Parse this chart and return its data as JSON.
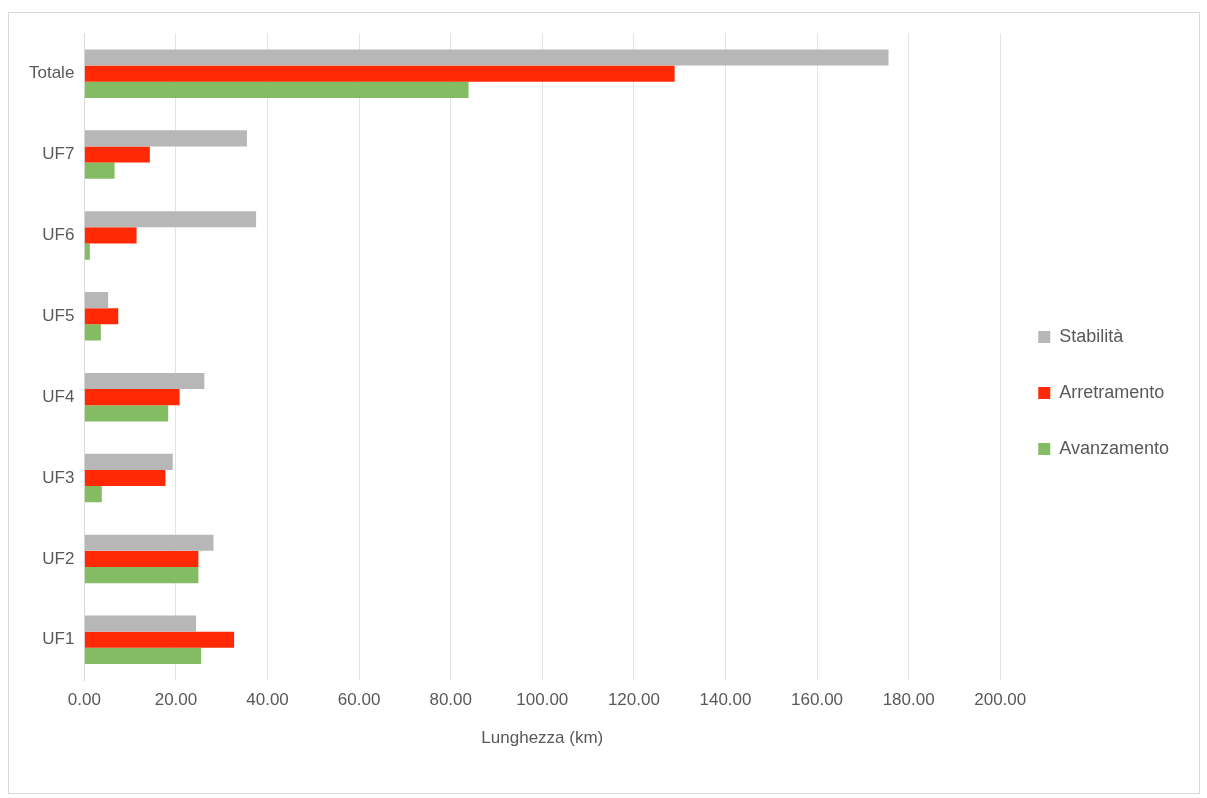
{
  "chart_data": {
    "type": "bar",
    "orientation": "horizontal",
    "xlabel": "Lunghezza (km)",
    "categories": [
      "Totale",
      "UF7",
      "UF6",
      "UF5",
      "UF4",
      "UF3",
      "UF2",
      "UF1"
    ],
    "series": [
      {
        "name": "Stabilità",
        "color": "#b7b7b7",
        "values": [
          175.6,
          35.5,
          37.5,
          5.2,
          26.2,
          19.3,
          28.2,
          24.4
        ]
      },
      {
        "name": "Arretramento",
        "color": "#ff2a05",
        "values": [
          128.9,
          14.3,
          11.4,
          7.4,
          20.8,
          17.7,
          24.9,
          32.7
        ]
      },
      {
        "name": "Avanzamento",
        "color": "#84bc64",
        "values": [
          83.9,
          6.6,
          1.2,
          3.6,
          18.3,
          3.8,
          24.9,
          25.5
        ]
      }
    ],
    "xlim": [
      0,
      200
    ],
    "xticks": [
      {
        "value": 0,
        "label": "0.00"
      },
      {
        "value": 20,
        "label": "20.00"
      },
      {
        "value": 40,
        "label": "40.00"
      },
      {
        "value": 60,
        "label": "60.00"
      },
      {
        "value": 80,
        "label": "80.00"
      },
      {
        "value": 100,
        "label": "100.00"
      },
      {
        "value": 120,
        "label": "120.00"
      },
      {
        "value": 140,
        "label": "140.00"
      },
      {
        "value": 160,
        "label": "160.00"
      },
      {
        "value": 180,
        "label": "180.00"
      },
      {
        "value": 200,
        "label": "200.00"
      }
    ],
    "grid": "x",
    "legend": "right"
  }
}
